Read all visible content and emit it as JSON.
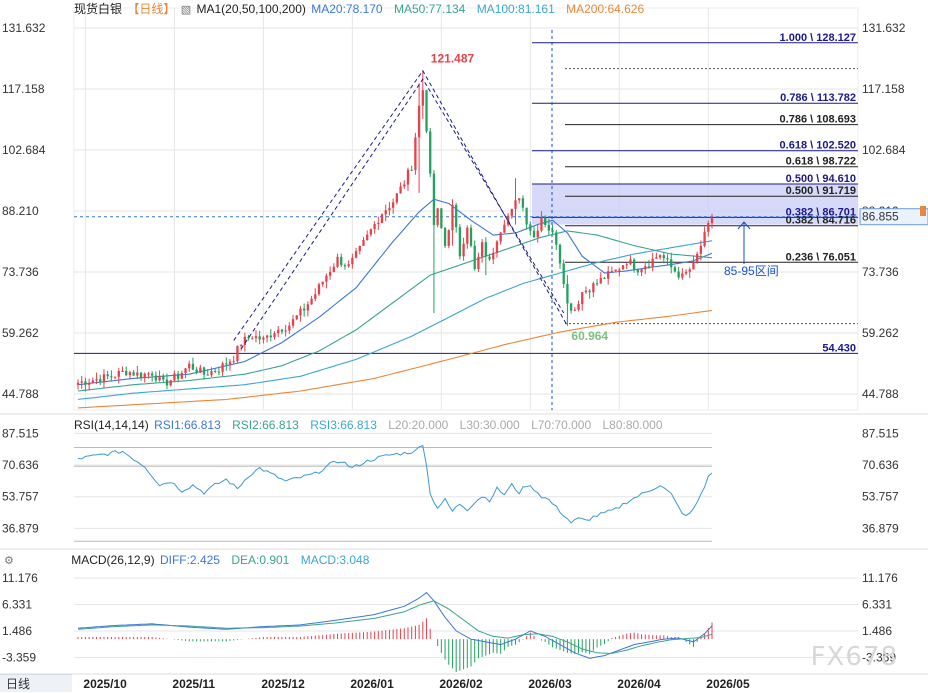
{
  "header": {
    "main": {
      "title": "现货白银",
      "period": "【日线】",
      "indicator": "MA1(20,50,100,200)",
      "items": [
        {
          "label": "MA20:78.170",
          "color": "#3b78d8"
        },
        {
          "label": "MA50:77.134",
          "color": "#3aa38f"
        },
        {
          "label": "MA100:81.161",
          "color": "#3ba6d1"
        },
        {
          "label": "MA200:64.626",
          "color": "#e8873a"
        }
      ]
    },
    "rsi": {
      "title": "RSI(14,14,14)",
      "items": [
        {
          "label": "RSI1:66.813",
          "color": "#3b78d8"
        },
        {
          "label": "RSI2:66.813",
          "color": "#3aa38f"
        },
        {
          "label": "RSI3:66.813",
          "color": "#3ba6d1"
        },
        {
          "label": "L20:20.000",
          "color": "#aaaaaa"
        },
        {
          "label": "L30:30.000",
          "color": "#aaaaaa"
        },
        {
          "label": "L70:70.000",
          "color": "#aaaaaa"
        },
        {
          "label": "L80:80.000",
          "color": "#aaaaaa"
        }
      ]
    },
    "macd": {
      "title": "MACD(26,12,9)",
      "items": [
        {
          "label": "DIFF:2.425",
          "color": "#3b78d8"
        },
        {
          "label": "DEA:0.901",
          "color": "#3aa38f"
        },
        {
          "label": "MACD:3.048",
          "color": "#3ba6d1"
        }
      ]
    }
  },
  "period_label": "日线",
  "watermark": "FX678",
  "colors": {
    "up": "#e8414b",
    "down": "#21a35d",
    "fib": "#1a1a8c",
    "grid": "#e6e6e6"
  },
  "chart_data": {
    "type": "candlestick",
    "x_labels": [
      "2025/10",
      "2025/11",
      "2025/12",
      "2026/01",
      "2026/02",
      "2026/03",
      "2026/04",
      "2026/05"
    ],
    "price_axis": {
      "ticks": [
        "131.632",
        "117.158",
        "102.684",
        "88.210",
        "73.736",
        "59.262",
        "44.788"
      ],
      "range": [
        41.0,
        134.0
      ],
      "current": "86.855"
    },
    "candles": {
      "anchors": [
        [
          0,
          47.5
        ],
        [
          8,
          48.8
        ],
        [
          13,
          50.2
        ],
        [
          17,
          49.3
        ],
        [
          20,
          49.9
        ],
        [
          23,
          47.2
        ],
        [
          27,
          49.1
        ],
        [
          30,
          51.6
        ],
        [
          34,
          49.5
        ],
        [
          38,
          50.8
        ],
        [
          42,
          53.5
        ],
        [
          44,
          57.0
        ],
        [
          47,
          58.6
        ],
        [
          50,
          57.6
        ],
        [
          53,
          59.8
        ],
        [
          57,
          61.2
        ],
        [
          61,
          65.0
        ],
        [
          64,
          68.6
        ],
        [
          67,
          73.0
        ],
        [
          70,
          76.8
        ],
        [
          73,
          75.0
        ],
        [
          76,
          79.0
        ],
        [
          79,
          83.6
        ],
        [
          82,
          87.8
        ],
        [
          85,
          90.5
        ],
        [
          88,
          95.0
        ],
        [
          90,
          99.0
        ],
        [
          92,
          113.0
        ],
        [
          93,
          117.0
        ],
        [
          94,
          108.0
        ],
        [
          95,
          96.0
        ],
        [
          96,
          85.0
        ],
        [
          97,
          88.0
        ],
        [
          99,
          80.0
        ],
        [
          101,
          89.0
        ],
        [
          103,
          78.0
        ],
        [
          105,
          85.0
        ],
        [
          107,
          74.0
        ],
        [
          109,
          80.0
        ],
        [
          111,
          76.0
        ],
        [
          113,
          82.0
        ],
        [
          115,
          86.0
        ],
        [
          117,
          88.0
        ],
        [
          119,
          92.0
        ],
        [
          121,
          86.0
        ],
        [
          123,
          82.0
        ],
        [
          125,
          87.0
        ],
        [
          127,
          84.0
        ],
        [
          129,
          81.0
        ],
        [
          131,
          72.0
        ],
        [
          132,
          66.0
        ],
        [
          134,
          65.0
        ],
        [
          136,
          69.0
        ],
        [
          139,
          70.5
        ],
        [
          142,
          72.5
        ],
        [
          145,
          74.0
        ],
        [
          148,
          76.5
        ],
        [
          151,
          74.6
        ],
        [
          154,
          76.0
        ],
        [
          157,
          78.0
        ],
        [
          160,
          74.8
        ],
        [
          163,
          72.5
        ],
        [
          166,
          75.3
        ],
        [
          168,
          80.0
        ],
        [
          170,
          84.5
        ],
        [
          171,
          86.855
        ]
      ],
      "spikes": [
        [
          92,
          118.5,
          92.5
        ],
        [
          93,
          121.487,
          110
        ],
        [
          96,
          95,
          64
        ],
        [
          118,
          96,
          85
        ],
        [
          132,
          73,
          60.964
        ],
        [
          101,
          91,
          80
        ],
        [
          110,
          82,
          73
        ]
      ]
    },
    "series": [
      {
        "name": "MA20",
        "color": "#3b78d8",
        "points": [
          [
            0,
            47
          ],
          [
            15,
            48.5
          ],
          [
            30,
            49.5
          ],
          [
            45,
            52.5
          ],
          [
            55,
            57
          ],
          [
            65,
            63
          ],
          [
            75,
            70
          ],
          [
            85,
            81
          ],
          [
            92,
            88
          ],
          [
            96,
            91
          ],
          [
            100,
            90
          ],
          [
            106,
            86
          ],
          [
            112,
            82.5
          ],
          [
            118,
            83
          ],
          [
            124,
            85
          ],
          [
            128,
            86
          ],
          [
            132,
            83
          ],
          [
            136,
            77.5
          ],
          [
            142,
            73.5
          ],
          [
            148,
            74
          ],
          [
            154,
            74.8
          ],
          [
            160,
            75.5
          ],
          [
            166,
            76.4
          ],
          [
            171,
            78.17
          ]
        ]
      },
      {
        "name": "MA50",
        "color": "#3aa38f",
        "points": [
          [
            0,
            45.5
          ],
          [
            15,
            47
          ],
          [
            30,
            48
          ],
          [
            45,
            49.5
          ],
          [
            55,
            51.5
          ],
          [
            65,
            55
          ],
          [
            75,
            60
          ],
          [
            85,
            66.5
          ],
          [
            95,
            73
          ],
          [
            105,
            76
          ],
          [
            115,
            79
          ],
          [
            125,
            82
          ],
          [
            132,
            83.5
          ],
          [
            140,
            82.5
          ],
          [
            150,
            80
          ],
          [
            160,
            78
          ],
          [
            171,
            77.134
          ]
        ]
      },
      {
        "name": "MA100",
        "color": "#3ba6d1",
        "points": [
          [
            0,
            43.5
          ],
          [
            15,
            45
          ],
          [
            30,
            46
          ],
          [
            45,
            47
          ],
          [
            60,
            49
          ],
          [
            75,
            53
          ],
          [
            90,
            58.5
          ],
          [
            100,
            63
          ],
          [
            110,
            67.5
          ],
          [
            120,
            71
          ],
          [
            130,
            73.5
          ],
          [
            140,
            76
          ],
          [
            150,
            78
          ],
          [
            160,
            79.5
          ],
          [
            171,
            81.161
          ]
        ]
      },
      {
        "name": "MA200",
        "color": "#e8873a",
        "points": [
          [
            0,
            41.5
          ],
          [
            20,
            42.5
          ],
          [
            40,
            43.5
          ],
          [
            60,
            45.5
          ],
          [
            80,
            48.5
          ],
          [
            100,
            53
          ],
          [
            115,
            56.5
          ],
          [
            130,
            59.5
          ],
          [
            145,
            61.8
          ],
          [
            160,
            63.3
          ],
          [
            171,
            64.626
          ]
        ]
      }
    ],
    "fib_levels": [
      {
        "label": "1.000 \\ 128.127",
        "value": 128.127,
        "color": "#1a1a8c",
        "style": "solid"
      },
      {
        "label": "",
        "value": 122.0,
        "color": "#555555",
        "style": "dotted"
      },
      {
        "label": "0.786 \\ 113.782",
        "value": 113.782,
        "color": "#1a1a8c",
        "style": "solid"
      },
      {
        "label": "0.786 \\ 108.693",
        "value": 108.693,
        "color": "#222222",
        "style": "solid"
      },
      {
        "label": "0.618 \\ 102.520",
        "value": 102.52,
        "color": "#1a1a8c",
        "style": "solid"
      },
      {
        "label": "0.618 \\ 98.722",
        "value": 98.722,
        "color": "#222222",
        "style": "solid"
      },
      {
        "label": "0.500 \\ 94.610",
        "value": 94.61,
        "color": "#1a1a8c",
        "style": "solid"
      },
      {
        "label": "0.500 \\ 91.719",
        "value": 91.719,
        "color": "#222222",
        "style": "solid"
      },
      {
        "label": "0.382 \\ 86.701",
        "value": 86.701,
        "color": "#1a1a8c",
        "style": "solid"
      },
      {
        "label": "0.382 \\ 84.716",
        "value": 84.716,
        "color": "#222222",
        "style": "solid"
      },
      {
        "label": "0.236 \\ 76.051",
        "value": 76.051,
        "color": "#222222",
        "style": "solid"
      },
      {
        "label": "",
        "value": 61.5,
        "color": "#555555",
        "style": "dotted"
      },
      {
        "label": "54.430",
        "value": 54.43,
        "color": "#1a1a8c",
        "style": "solid"
      }
    ],
    "annotations": {
      "high": "121.487",
      "low": "60.964",
      "zone": "85-95区间"
    },
    "rsi": {
      "ticks": [
        "87.515",
        "70.636",
        "53.757",
        "36.879"
      ],
      "range": [
        28,
        92
      ],
      "points": [
        [
          0,
          74
        ],
        [
          6,
          76
        ],
        [
          12,
          78
        ],
        [
          18,
          70
        ],
        [
          22,
          60
        ],
        [
          25,
          62
        ],
        [
          28,
          57
        ],
        [
          31,
          60
        ],
        [
          34,
          56
        ],
        [
          37,
          60
        ],
        [
          40,
          63
        ],
        [
          43,
          58
        ],
        [
          46,
          65
        ],
        [
          49,
          69
        ],
        [
          52,
          66
        ],
        [
          56,
          62
        ],
        [
          60,
          64
        ],
        [
          64,
          66
        ],
        [
          68,
          71
        ],
        [
          71,
          73
        ],
        [
          74,
          69
        ],
        [
          77,
          72
        ],
        [
          80,
          74
        ],
        [
          84,
          76
        ],
        [
          88,
          77
        ],
        [
          91,
          78
        ],
        [
          92,
          80
        ],
        [
          93,
          82
        ],
        [
          94,
          71
        ],
        [
          95,
          55
        ],
        [
          97,
          48
        ],
        [
          99,
          52
        ],
        [
          101,
          46
        ],
        [
          103,
          50
        ],
        [
          105,
          47
        ],
        [
          107,
          51
        ],
        [
          109,
          54
        ],
        [
          111,
          52
        ],
        [
          113,
          58
        ],
        [
          115,
          55
        ],
        [
          117,
          60
        ],
        [
          119,
          56
        ],
        [
          121,
          60
        ],
        [
          123,
          58
        ],
        [
          125,
          54
        ],
        [
          127,
          52
        ],
        [
          129,
          48
        ],
        [
          131,
          44
        ],
        [
          133,
          40
        ],
        [
          135,
          42
        ],
        [
          137,
          41
        ],
        [
          139,
          43
        ],
        [
          142,
          45
        ],
        [
          145,
          47
        ],
        [
          148,
          51
        ],
        [
          151,
          54
        ],
        [
          154,
          57
        ],
        [
          157,
          60
        ],
        [
          160,
          55
        ],
        [
          162,
          48
        ],
        [
          164,
          43
        ],
        [
          166,
          47
        ],
        [
          168,
          55
        ],
        [
          170,
          64
        ],
        [
          171,
          66.813
        ]
      ]
    },
    "macd": {
      "ticks": [
        "11.176",
        "6.331",
        "1.486",
        "-3.359"
      ],
      "range": [
        -6,
        13
      ],
      "diff": [
        [
          0,
          2.0
        ],
        [
          10,
          2.5
        ],
        [
          20,
          2.8
        ],
        [
          30,
          2.2
        ],
        [
          40,
          1.8
        ],
        [
          50,
          2.3
        ],
        [
          60,
          2.6
        ],
        [
          70,
          3.5
        ],
        [
          80,
          4.5
        ],
        [
          88,
          6
        ],
        [
          92,
          7.5
        ],
        [
          94,
          8.5
        ],
        [
          96,
          7
        ],
        [
          99,
          4
        ],
        [
          102,
          1.5
        ],
        [
          106,
          0
        ],
        [
          110,
          -0.5
        ],
        [
          114,
          -1
        ],
        [
          118,
          0
        ],
        [
          122,
          1.5
        ],
        [
          126,
          0.5
        ],
        [
          130,
          -1
        ],
        [
          134,
          -2.5
        ],
        [
          138,
          -3.5
        ],
        [
          142,
          -3
        ],
        [
          146,
          -2
        ],
        [
          150,
          -1
        ],
        [
          154,
          -0.5
        ],
        [
          158,
          0
        ],
        [
          162,
          0.2
        ],
        [
          166,
          -0.5
        ],
        [
          169,
          1
        ],
        [
          171,
          2.425
        ]
      ],
      "dea": [
        [
          0,
          1.8
        ],
        [
          10,
          2.3
        ],
        [
          20,
          2.6
        ],
        [
          30,
          2.4
        ],
        [
          40,
          2.0
        ],
        [
          50,
          2.1
        ],
        [
          60,
          2.4
        ],
        [
          70,
          3.0
        ],
        [
          80,
          3.8
        ],
        [
          88,
          5
        ],
        [
          92,
          6.2
        ],
        [
          96,
          7
        ],
        [
          100,
          5.5
        ],
        [
          104,
          3.5
        ],
        [
          108,
          1.5
        ],
        [
          112,
          0.5
        ],
        [
          116,
          0.2
        ],
        [
          120,
          0.8
        ],
        [
          124,
          1
        ],
        [
          128,
          0.5
        ],
        [
          132,
          -0.5
        ],
        [
          136,
          -1.8
        ],
        [
          140,
          -2.5
        ],
        [
          144,
          -2.6
        ],
        [
          148,
          -2.0
        ],
        [
          152,
          -1.2
        ],
        [
          156,
          -0.6
        ],
        [
          160,
          -0.1
        ],
        [
          164,
          0.1
        ],
        [
          168,
          0.3
        ],
        [
          171,
          0.901
        ]
      ],
      "hist_range": [
        -6,
        4
      ]
    }
  }
}
